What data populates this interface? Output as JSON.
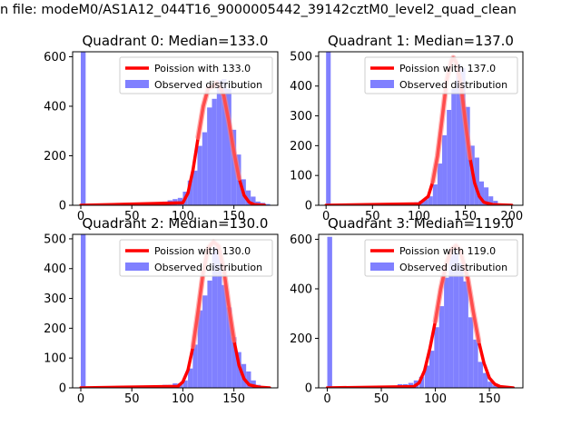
{
  "suptitle": "n file: modeM0/AS1A12_044T16_9000005442_39142cztM0_level2_quad_clean",
  "colors": {
    "hist": "#8080ff",
    "fit": "#ff0000",
    "fit_highlight": "#ff8080"
  },
  "chart_data": [
    {
      "type": "bar",
      "title": "Quadrant 0: Median=133.0",
      "ylim": [
        0,
        620
      ],
      "xlim": [
        -8,
        193
      ],
      "xticks": [
        0,
        50,
        100,
        150
      ],
      "yticks": [
        0,
        200,
        400,
        600
      ],
      "legend": {
        "position": "top-right",
        "entries": [
          "Poission with 133.0",
          "Observed distribution"
        ]
      },
      "median": 133,
      "observed": {
        "bin_width": 4.75,
        "x": [
          0,
          70,
          75,
          80,
          85,
          90,
          95,
          100,
          104.75,
          109.5,
          114.25,
          119,
          123.75,
          128.5,
          133.25,
          138,
          142.75,
          147.5,
          152.25,
          157,
          161.75,
          166.5,
          171.25,
          176,
          180.75
        ],
        "values": [
          640,
          5,
          10,
          15,
          20,
          25,
          30,
          55,
          100,
          140,
          240,
          295,
          395,
          430,
          505,
          510,
          470,
          305,
          205,
          105,
          60,
          35,
          15,
          10,
          5
        ]
      },
      "fit": {
        "x": [
          0,
          100,
          105,
          110,
          115,
          120,
          125,
          130,
          133,
          136,
          140,
          145,
          150,
          155,
          160,
          165,
          170,
          180
        ],
        "y": [
          0,
          10,
          50,
          145,
          275,
          400,
          475,
          480,
          495,
          480,
          445,
          340,
          215,
          110,
          40,
          12,
          3,
          0
        ]
      }
    },
    {
      "type": "bar",
      "title": "Quadrant 1: Median=137.0",
      "ylim": [
        0,
        515
      ],
      "xlim": [
        -8,
        212
      ],
      "xticks": [
        0,
        50,
        100,
        150,
        200
      ],
      "yticks": [
        0,
        100,
        200,
        300,
        400,
        500
      ],
      "legend": {
        "position": "top-right",
        "entries": [
          "Poission with 137.0",
          "Observed distribution"
        ]
      },
      "median": 137,
      "observed": {
        "bin_width": 5,
        "x": [
          0,
          80,
          85,
          90,
          95,
          100,
          105,
          110,
          115,
          120,
          125,
          130,
          135,
          140,
          145,
          150,
          155,
          160,
          165,
          170,
          175,
          180,
          185
        ],
        "values": [
          515,
          3,
          5,
          8,
          10,
          15,
          20,
          30,
          70,
          140,
          235,
          320,
          390,
          475,
          460,
          330,
          200,
          160,
          80,
          60,
          30,
          15,
          5
        ]
      },
      "fit": {
        "x": [
          0,
          100,
          110,
          115,
          120,
          125,
          130,
          135,
          137,
          140,
          145,
          150,
          155,
          160,
          165,
          170,
          180,
          200
        ],
        "y": [
          0,
          5,
          30,
          80,
          165,
          290,
          420,
          485,
          495,
          480,
          410,
          280,
          160,
          75,
          30,
          10,
          2,
          0
        ]
      }
    },
    {
      "type": "bar",
      "title": "Quadrant 2: Median=130.0",
      "ylim": [
        0,
        515
      ],
      "xlim": [
        -8,
        193
      ],
      "xticks": [
        0,
        50,
        100,
        150
      ],
      "yticks": [
        0,
        100,
        200,
        300,
        400,
        500
      ],
      "legend": {
        "position": "top-right",
        "entries": [
          "Poission with 130.0",
          "Observed distribution"
        ]
      },
      "median": 130,
      "observed": {
        "bin_width": 4.75,
        "x": [
          0,
          75,
          80,
          85,
          90,
          95,
          100,
          105,
          109.75,
          114.5,
          119.25,
          124,
          128.75,
          133.5,
          138.25,
          143,
          147.75,
          152.5,
          157.25,
          162,
          166.75,
          171.5,
          176.25
        ],
        "values": [
          515,
          5,
          10,
          10,
          15,
          15,
          25,
          65,
          145,
          260,
          310,
          360,
          470,
          460,
          345,
          270,
          170,
          120,
          80,
          55,
          25,
          10,
          5
        ]
      },
      "fit": {
        "x": [
          0,
          95,
          100,
          105,
          110,
          115,
          120,
          125,
          130,
          135,
          140,
          145,
          150,
          155,
          160,
          165,
          175,
          185
        ],
        "y": [
          0,
          5,
          20,
          60,
          140,
          260,
          390,
          470,
          490,
          475,
          400,
          275,
          160,
          75,
          30,
          10,
          2,
          0
        ]
      }
    },
    {
      "type": "bar",
      "title": "Quadrant 3: Median=119.0",
      "ylim": [
        0,
        620
      ],
      "xlim": [
        -8,
        181
      ],
      "xticks": [
        0,
        50,
        100,
        150
      ],
      "yticks": [
        0,
        200,
        400,
        600
      ],
      "legend": {
        "position": "top-right",
        "entries": [
          "Poission with 119.0",
          "Observed distribution"
        ]
      },
      "median": 119,
      "observed": {
        "bin_width": 4.5,
        "x": [
          0,
          60,
          65,
          70,
          75,
          80,
          85,
          90,
          94.5,
          99,
          103.5,
          108,
          112.5,
          117,
          121.5,
          126,
          130.5,
          135,
          139.5,
          144,
          148.5,
          153,
          157.5,
          162
        ],
        "values": [
          610,
          5,
          15,
          15,
          20,
          30,
          45,
          90,
          150,
          245,
          330,
          445,
          540,
          575,
          505,
          430,
          285,
          195,
          105,
          60,
          25,
          10,
          5,
          3
        ]
      },
      "fit": {
        "x": [
          0,
          80,
          85,
          90,
          95,
          100,
          105,
          110,
          115,
          119,
          123,
          130,
          135,
          140,
          145,
          150,
          155,
          160,
          172
        ],
        "y": [
          0,
          5,
          20,
          70,
          160,
          270,
          400,
          500,
          560,
          575,
          555,
          440,
          310,
          190,
          100,
          40,
          15,
          5,
          0
        ]
      }
    }
  ]
}
